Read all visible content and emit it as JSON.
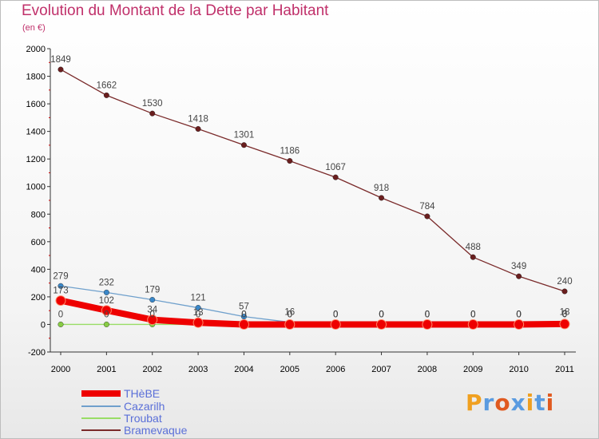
{
  "header": {
    "title": "Evolution du Montant de la Dette par Habitant",
    "subtitle": "(en €)"
  },
  "brand": {
    "text": "Proxiti",
    "colors": [
      "#f0a020",
      "#5a9be0",
      "#e05a20",
      "#5a9be0",
      "#f0a020",
      "#5a9be0",
      "#e05a20"
    ]
  },
  "chart_data": {
    "type": "line",
    "title": "Evolution du Montant de la Dette par Habitant",
    "subtitle": "(en €)",
    "x": [
      "2000",
      "2001",
      "2002",
      "2003",
      "2004",
      "2005",
      "2006",
      "2007",
      "2008",
      "2009",
      "2010",
      "2011"
    ],
    "ylim": [
      -200,
      2000
    ],
    "yticks": [
      "-200",
      "0",
      "200",
      "400",
      "600",
      "800",
      "1000",
      "1200",
      "1400",
      "1600",
      "1800",
      "2000"
    ],
    "grid": false,
    "legend_position": "bottom-left",
    "series": [
      {
        "name": "THèBE",
        "color": "#ee0000",
        "marker": "#ee0000",
        "values": [
          173,
          102,
          34,
          13,
          0,
          0,
          0,
          0,
          0,
          0,
          0,
          3
        ],
        "labels": [
          "173",
          "102",
          "34",
          "13",
          "0",
          "0",
          "0",
          "0",
          "0",
          "0",
          "0",
          "3"
        ]
      },
      {
        "name": "Cazarilh",
        "color": "#6fa0cc",
        "marker": "#3a87c8",
        "values": [
          279,
          232,
          179,
          121,
          57,
          16,
          0,
          0,
          0,
          0,
          0,
          18
        ],
        "labels": [
          "279",
          "232",
          "179",
          "121",
          "57",
          "16",
          "0",
          "0",
          "0",
          "0",
          "0",
          "18"
        ]
      },
      {
        "name": "Troubat",
        "color": "#99dd66",
        "marker": "#88cc44",
        "values": [
          0,
          0,
          0,
          0,
          0,
          0,
          0,
          0,
          0,
          0,
          0,
          0
        ],
        "labels": [
          "0",
          "0",
          "0",
          "0",
          "0",
          "0",
          "0",
          "0",
          "0",
          "0",
          "0",
          "0"
        ]
      },
      {
        "name": "Bramevaque",
        "color": "#7a2a2a",
        "marker": "#6a1e1e",
        "values": [
          1849,
          1662,
          1530,
          1418,
          1301,
          1186,
          1067,
          918,
          784,
          488,
          349,
          240
        ],
        "labels": [
          "1849",
          "1662",
          "1530",
          "1418",
          "1301",
          "1186",
          "1067",
          "918",
          "784",
          "488",
          "349",
          "240"
        ]
      }
    ]
  }
}
